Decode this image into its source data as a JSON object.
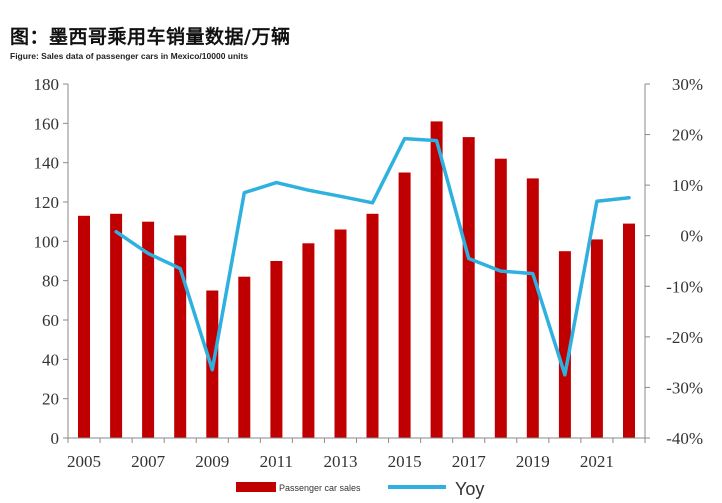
{
  "title": "图：墨西哥乘用车销量数据/万辆",
  "subtitle": "Figure: Sales data of passenger cars in Mexico/10000 units",
  "colors": {
    "bar": "#c00000",
    "line": "#2fb1e0"
  },
  "chart_data": {
    "type": "bar",
    "x": [
      2005,
      2006,
      2007,
      2008,
      2009,
      2010,
      2011,
      2012,
      2013,
      2014,
      2015,
      2016,
      2017,
      2018,
      2019,
      2020,
      2021,
      2022
    ],
    "x_tick_labels": [
      "2005",
      "2007",
      "2009",
      "2011",
      "2013",
      "2015",
      "2017",
      "2019",
      "2021"
    ],
    "x_tick_years": [
      2005,
      2007,
      2009,
      2011,
      2013,
      2015,
      2017,
      2019,
      2021
    ],
    "series": [
      {
        "name": "Passenger car sales",
        "type": "bar",
        "axis": "left",
        "values": [
          113,
          114,
          110,
          103,
          75,
          82,
          90,
          99,
          106,
          114,
          135,
          161,
          153,
          142,
          132,
          95,
          101,
          109
        ]
      },
      {
        "name": "Yoy",
        "type": "line",
        "axis": "right",
        "values": [
          null,
          0.8,
          -3.5,
          -6.5,
          -26.5,
          8.5,
          10.5,
          9.0,
          7.8,
          6.5,
          19.2,
          18.8,
          -4.5,
          -7.0,
          -7.5,
          -27.5,
          6.8,
          7.5
        ]
      }
    ],
    "ylim_left": [
      0,
      180
    ],
    "yticks_left": [
      0,
      20,
      40,
      60,
      80,
      100,
      120,
      140,
      160,
      180
    ],
    "ylim_right": [
      -40,
      30
    ],
    "yticks_right": [
      -40,
      -30,
      -20,
      -10,
      0,
      10,
      20,
      30
    ],
    "yticks_right_labels": [
      "-40%",
      "-30%",
      "-20%",
      "-10%",
      "0%",
      "10%",
      "20%",
      "30%"
    ],
    "grid": false,
    "legend_position": "bottom"
  }
}
